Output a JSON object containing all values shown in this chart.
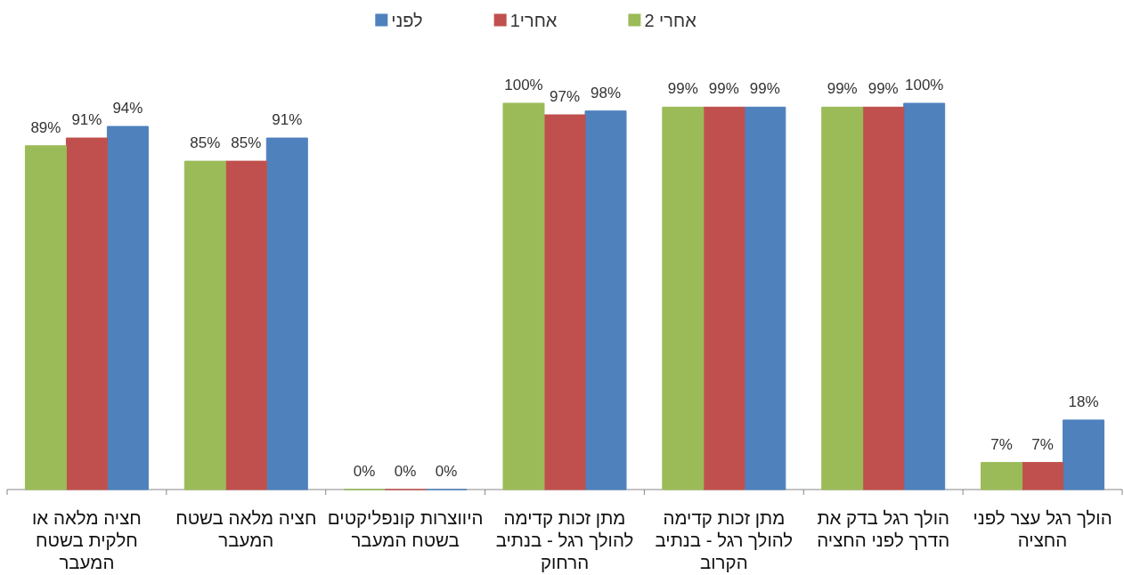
{
  "chart_data": {
    "type": "bar",
    "categories": [
      "חציה מלאה או חלקית בשטח המעבר",
      "חציה מלאה בשטח המעבר",
      "היווצרות קונפליקטים בשטח המעבר",
      "מתן זכות קדימה להולך רגל - בנתיב הרחוק",
      "מתן זכות קדימה להולך רגל - בנתיב הקרוב",
      "הולך רגל בדק את הדרך לפני החציה",
      "הולך רגל עצר לפני החציה"
    ],
    "series": [
      {
        "name": "לפני",
        "color": "#4f81bd",
        "values": [
          94,
          91,
          0,
          98,
          99,
          100,
          18
        ],
        "value_labels": [
          "94%",
          "91%",
          "0%",
          "98%",
          "99%",
          "100%",
          "18%"
        ]
      },
      {
        "name": "אחרי1",
        "color": "#c0504d",
        "values": [
          91,
          85,
          0,
          97,
          99,
          99,
          7
        ],
        "value_labels": [
          "91%",
          "85%",
          "0%",
          "97%",
          "99%",
          "99%",
          "7%"
        ]
      },
      {
        "name": "אחרי 2",
        "color": "#9bbb59",
        "values": [
          89,
          85,
          0,
          100,
          99,
          99,
          7
        ],
        "value_labels": [
          "89%",
          "85%",
          "0%",
          "100%",
          "99%",
          "99%",
          "7%"
        ]
      }
    ],
    "legend": "top",
    "tick_labels": "x"
  }
}
